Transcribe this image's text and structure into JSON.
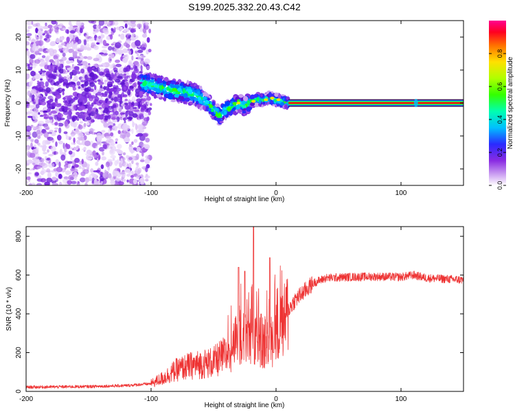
{
  "title": "S199.2025.332.20.43.C42",
  "chart_data": [
    {
      "type": "heatmap",
      "name": "spectrogram",
      "xlabel": "Height of straight line (km)",
      "ylabel": "Frequency (Hz)",
      "xlim": [
        -200,
        150
      ],
      "ylim": [
        -25,
        25
      ],
      "xticks": [
        -200,
        -100,
        0,
        100
      ],
      "yticks": [
        -20,
        -10,
        0,
        10,
        20
      ],
      "colorbar": {
        "label": "Normalized spectral amplitude",
        "range": [
          0,
          1
        ],
        "ticks": [
          0.0,
          0.2,
          0.4,
          0.6,
          0.8
        ]
      },
      "carrier_line": {
        "x_start": 10,
        "x_end": 150,
        "freq": 0
      },
      "ridge": [
        [
          -105,
          6
        ],
        [
          -95,
          5
        ],
        [
          -85,
          4
        ],
        [
          -78,
          3.5
        ],
        [
          -70,
          3
        ],
        [
          -65,
          2.5
        ],
        [
          -60,
          1.5
        ],
        [
          -55,
          0
        ],
        [
          -50,
          -2
        ],
        [
          -45,
          -4
        ],
        [
          -40,
          -2
        ],
        [
          -35,
          -1
        ],
        [
          -30,
          0
        ],
        [
          -25,
          -1
        ],
        [
          -20,
          0.5
        ],
        [
          -15,
          1
        ],
        [
          -10,
          1
        ],
        [
          -5,
          1.5
        ],
        [
          0,
          1
        ],
        [
          5,
          0.5
        ],
        [
          10,
          0
        ]
      ]
    },
    {
      "type": "line",
      "name": "snr",
      "xlabel": "Height of straight line (km)",
      "ylabel": "SNR (10 * v/v)",
      "xlim": [
        -200,
        150
      ],
      "ylim": [
        0,
        850
      ],
      "xticks": [
        -200,
        -100,
        0,
        100
      ],
      "yticks": [
        0,
        200,
        400,
        600,
        800
      ],
      "color": "#ee3333",
      "envelope": [
        [
          -200,
          22
        ],
        [
          -150,
          25
        ],
        [
          -120,
          30
        ],
        [
          -100,
          40
        ],
        [
          -90,
          70
        ],
        [
          -80,
          110
        ],
        [
          -70,
          130
        ],
        [
          -60,
          140
        ],
        [
          -50,
          150
        ],
        [
          -40,
          190
        ],
        [
          -30,
          270
        ],
        [
          -25,
          320
        ],
        [
          -20,
          300
        ],
        [
          -15,
          260
        ],
        [
          -10,
          240
        ],
        [
          -5,
          250
        ],
        [
          0,
          300
        ],
        [
          5,
          330
        ],
        [
          10,
          420
        ],
        [
          15,
          470
        ],
        [
          20,
          500
        ],
        [
          25,
          530
        ],
        [
          30,
          560
        ],
        [
          40,
          585
        ],
        [
          60,
          590
        ],
        [
          80,
          592
        ],
        [
          100,
          590
        ],
        [
          110,
          600
        ],
        [
          120,
          585
        ],
        [
          150,
          575
        ]
      ],
      "spikes": [
        [
          -30,
          640
        ],
        [
          -25,
          620
        ],
        [
          -18,
          850
        ],
        [
          -12,
          400
        ],
        [
          -5,
          690
        ],
        [
          -2,
          200
        ]
      ]
    }
  ]
}
